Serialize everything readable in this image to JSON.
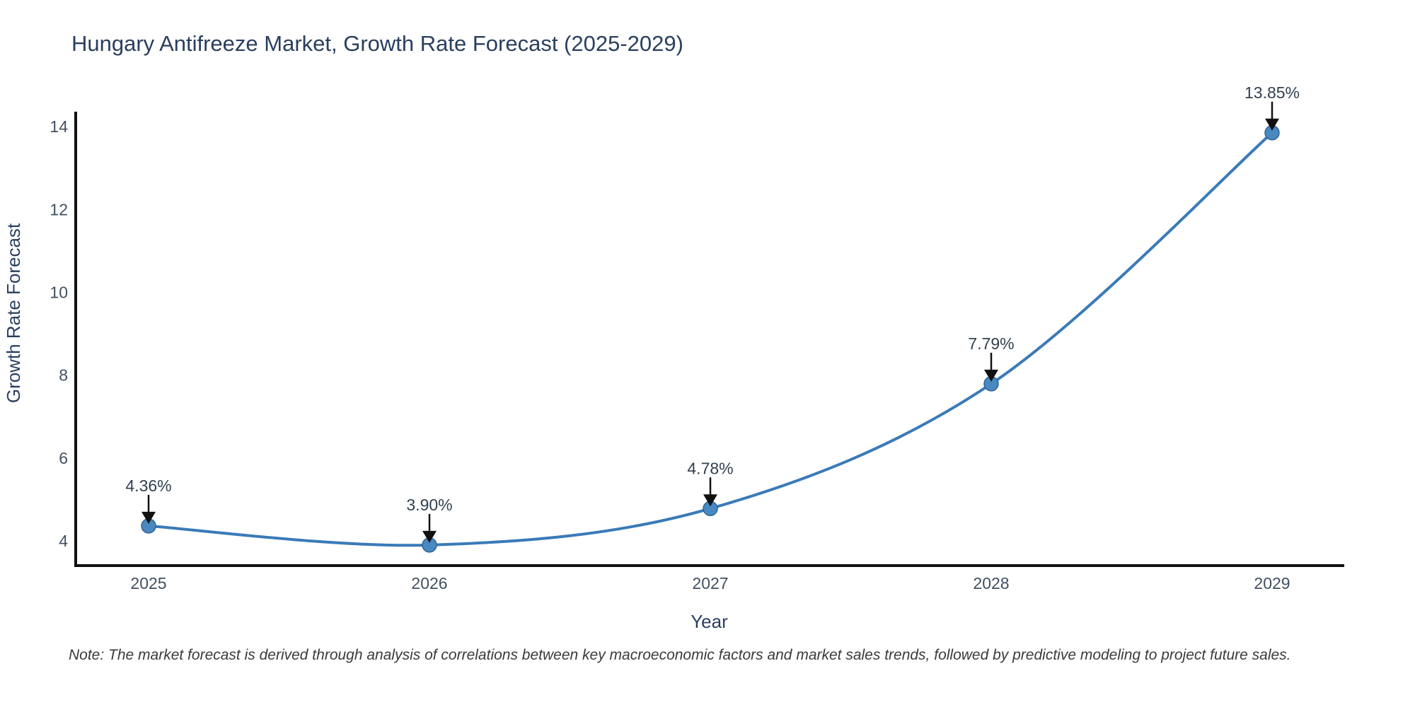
{
  "chart_data": {
    "type": "line",
    "title": "Hungary Antifreeze Market, Growth Rate Forecast (2025-2029)",
    "xlabel": "Year",
    "ylabel": "Growth Rate Forecast",
    "x": [
      2025,
      2026,
      2027,
      2028,
      2029
    ],
    "y": [
      4.36,
      3.9,
      4.78,
      7.79,
      13.85
    ],
    "point_labels": [
      "4.36%",
      "3.90%",
      "4.78%",
      "7.79%",
      "13.85%"
    ],
    "yticks": [
      4,
      6,
      8,
      10,
      12,
      14
    ],
    "xticks": [
      "2025",
      "2026",
      "2027",
      "2028",
      "2029"
    ],
    "ylim": [
      3.35,
      14.45
    ],
    "grid": false,
    "legend": "none",
    "line_shape": "spline",
    "annotation_style": "value-label-with-down-arrow",
    "colors": {
      "line": "#3a7ab8",
      "marker_fill": "#4789c0",
      "marker_edge": "#2f6597",
      "axis_line": "#111111",
      "title_text": "#2a3f5f",
      "tick_text": "#425062",
      "axis_title_text": "#2a3f5f",
      "annotation_text": "#33404f",
      "annotation_arrow": "#111111"
    }
  },
  "note": "Note: The market forecast is derived through analysis of correlations between key macroeconomic factors and market sales trends, followed by predictive modeling to project future sales."
}
